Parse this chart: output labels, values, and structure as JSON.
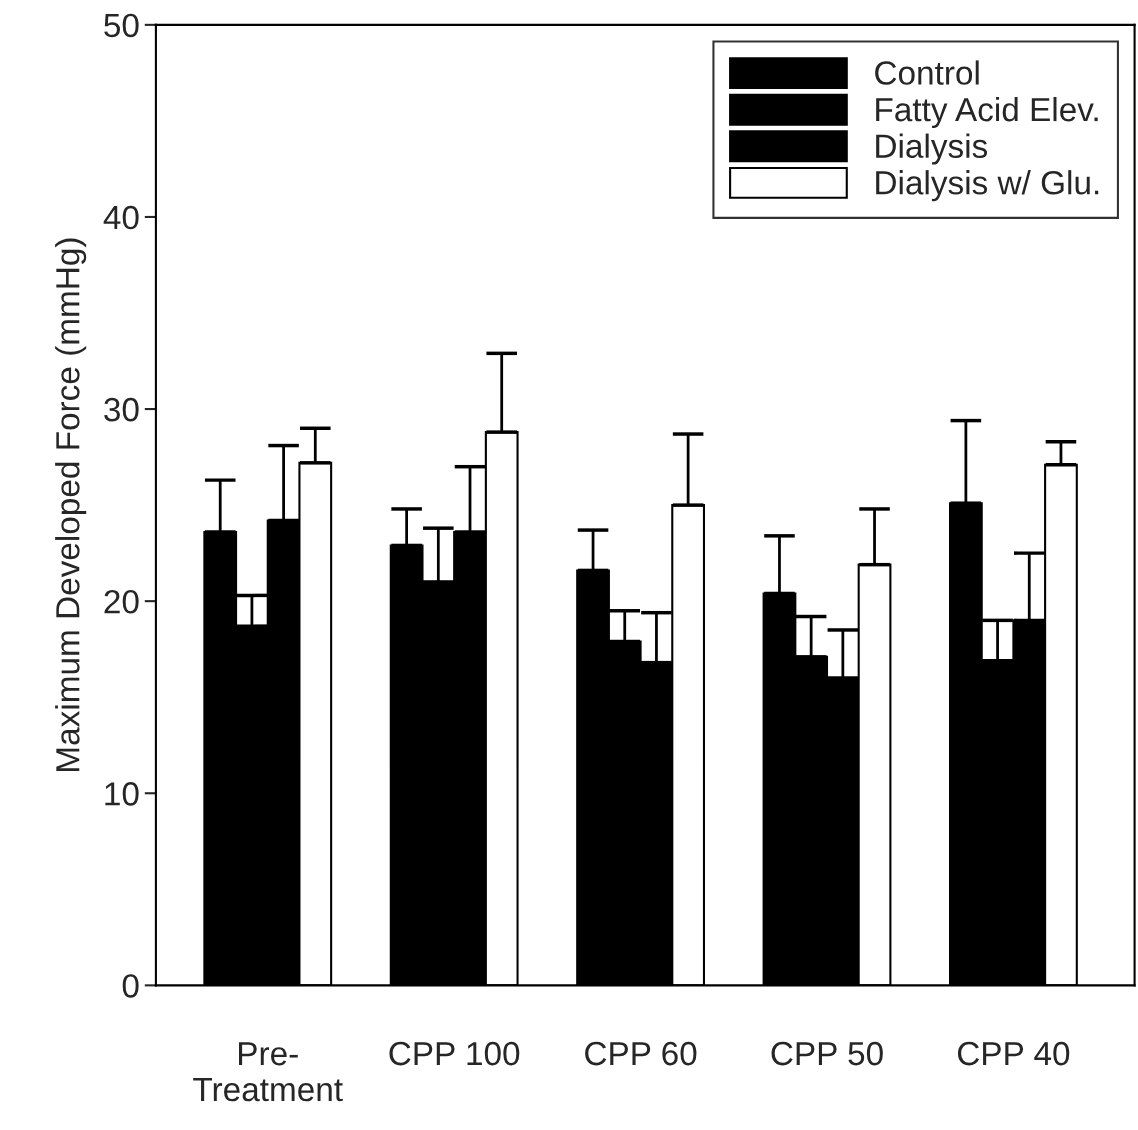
{
  "chart_data": {
    "type": "bar",
    "ylabel": "Maximum Developed Force (mmHg)",
    "categories": [
      "Pre-\nTreatment",
      "CPP 100",
      "CPP 60",
      "CPP 50",
      "CPP 40"
    ],
    "series": [
      {
        "name": "Control",
        "color": "#000000",
        "values": [
          23.6,
          22.9,
          21.6,
          20.4,
          25.1
        ],
        "errors": [
          [
            23.6,
            26.3
          ],
          [
            22.9,
            24.8
          ],
          [
            21.6,
            23.7
          ],
          [
            20.4,
            23.4
          ],
          [
            25.1,
            29.4
          ]
        ]
      },
      {
        "name": "Fatty Acid Elev.",
        "color": "#000000",
        "values": [
          18.7,
          21.0,
          17.9,
          17.1,
          16.9
        ],
        "errors": [
          [
            18.7,
            20.3
          ],
          [
            21.0,
            23.8
          ],
          [
            17.9,
            19.5
          ],
          [
            17.1,
            19.2
          ],
          [
            16.9,
            19.0
          ]
        ]
      },
      {
        "name": "Dialysis",
        "color": "#000000",
        "values": [
          24.2,
          23.6,
          16.8,
          16.0,
          19.0
        ],
        "errors": [
          [
            24.2,
            28.1
          ],
          [
            23.6,
            27.0
          ],
          [
            16.8,
            19.4
          ],
          [
            16.0,
            18.5
          ],
          [
            19.0,
            22.5
          ]
        ]
      },
      {
        "name": "Dialysis w/ Glu.",
        "color": "#ffffff",
        "values": [
          27.2,
          28.8,
          25.0,
          21.9,
          27.1
        ],
        "errors": [
          [
            27.2,
            29.0
          ],
          [
            28.8,
            32.9
          ],
          [
            25.0,
            28.7
          ],
          [
            21.9,
            24.8
          ],
          [
            27.1,
            28.3
          ]
        ]
      }
    ],
    "ylim": [
      0,
      50
    ],
    "yticks": [
      0,
      10,
      20,
      30,
      40,
      50
    ],
    "grid": false,
    "legend": "top right"
  }
}
